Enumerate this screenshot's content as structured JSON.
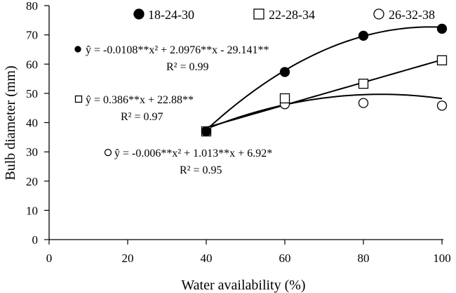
{
  "chart_data": {
    "type": "scatter",
    "title": "",
    "xlabel": "Water availability (%)",
    "ylabel": "Bulb diameter (mm)",
    "xlim": [
      0,
      100
    ],
    "ylim": [
      0,
      80
    ],
    "xticks": [
      0,
      20,
      40,
      60,
      80,
      100
    ],
    "yticks": [
      0,
      10,
      20,
      30,
      40,
      50,
      60,
      70,
      80
    ],
    "grid": false,
    "legend_position": "top",
    "series": [
      {
        "name": "18-24-30",
        "marker": "filled-circle",
        "x": [
          40,
          60,
          80,
          100
        ],
        "y": [
          37.0,
          57.3,
          69.7,
          72.1
        ],
        "fit": {
          "kind": "quadratic",
          "a": -0.0108,
          "b": 2.0976,
          "c": -29.141
        },
        "equation": "ŷ = -0.0108**x² + 2.0976**x - 29.141**",
        "r2": "R² = 0.99"
      },
      {
        "name": "22-28-34",
        "marker": "open-square",
        "x": [
          40,
          60,
          80,
          100
        ],
        "y": [
          37.0,
          48.3,
          53.3,
          61.3
        ],
        "fit": {
          "kind": "linear",
          "a": 0,
          "b": 0.386,
          "c": 22.88
        },
        "equation": "ŷ = 0.386**x + 22.88**",
        "r2": "R² = 0.97"
      },
      {
        "name": "26-32-38",
        "marker": "open-circle",
        "x": [
          40,
          60,
          80,
          100
        ],
        "y": [
          37.0,
          46.3,
          46.7,
          45.8
        ],
        "fit": {
          "kind": "quadratic",
          "a": -0.006,
          "b": 1.013,
          "c": 6.92
        },
        "equation": "ŷ = -0.006**x² + 1.013**x + 6.92*",
        "r2": "R² = 0.95"
      }
    ]
  }
}
